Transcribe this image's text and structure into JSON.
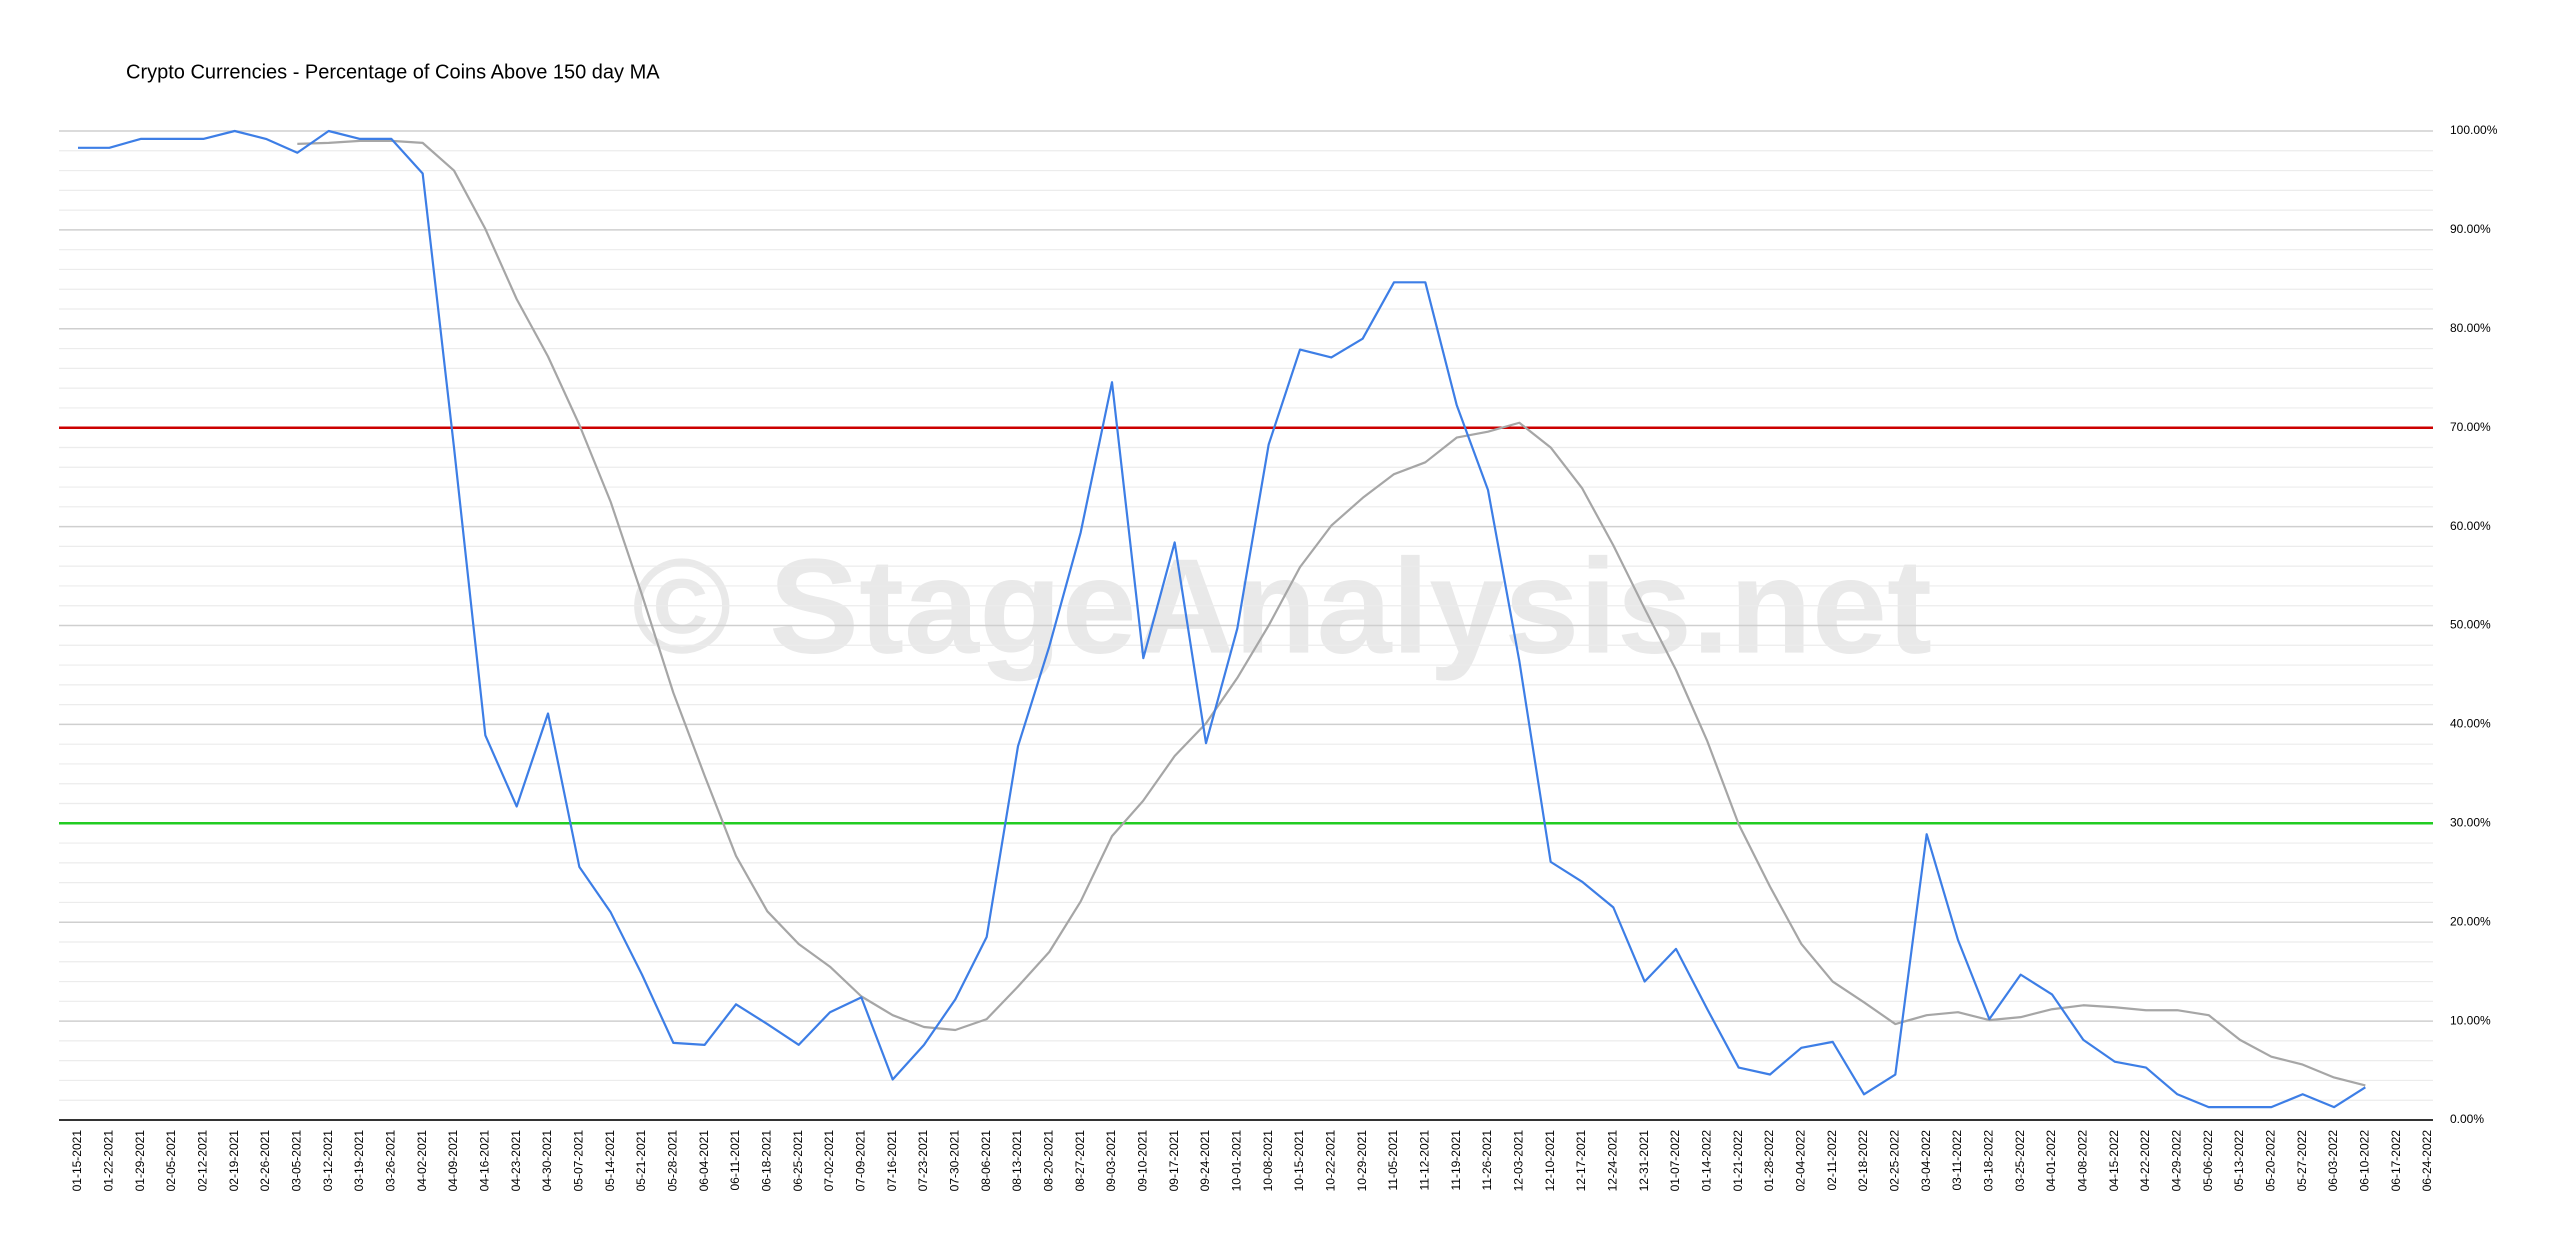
{
  "chart_data": {
    "type": "line",
    "title": "Crypto Currencies - Percentage of Coins Above 150 day MA",
    "watermark": "© StageAnalysis.net",
    "categories": [
      "01-15-2021",
      "01-22-2021",
      "01-29-2021",
      "02-05-2021",
      "02-12-2021",
      "02-19-2021",
      "02-26-2021",
      "03-05-2021",
      "03-12-2021",
      "03-19-2021",
      "03-26-2021",
      "04-02-2021",
      "04-09-2021",
      "04-16-2021",
      "04-23-2021",
      "04-30-2021",
      "05-07-2021",
      "05-14-2021",
      "05-21-2021",
      "05-28-2021",
      "06-04-2021",
      "06-11-2021",
      "06-18-2021",
      "06-25-2021",
      "07-02-2021",
      "07-09-2021",
      "07-16-2021",
      "07-23-2021",
      "07-30-2021",
      "08-06-2021",
      "08-13-2021",
      "08-20-2021",
      "08-27-2021",
      "09-03-2021",
      "09-10-2021",
      "09-17-2021",
      "09-24-2021",
      "10-01-2021",
      "10-08-2021",
      "10-15-2021",
      "10-22-2021",
      "10-29-2021",
      "11-05-2021",
      "11-12-2021",
      "11-19-2021",
      "11-26-2021",
      "12-03-2021",
      "12-10-2021",
      "12-17-2021",
      "12-24-2021",
      "12-31-2021",
      "01-07-2022",
      "01-14-2022",
      "01-21-2022",
      "01-28-2022",
      "02-04-2022",
      "02-11-2022",
      "02-18-2022",
      "02-25-2022",
      "03-04-2022",
      "03-11-2022",
      "03-18-2022",
      "03-25-2022",
      "04-01-2022",
      "04-08-2022",
      "04-15-2022",
      "04-22-2022",
      "04-29-2022",
      "05-06-2022",
      "05-13-2022",
      "05-20-2022",
      "05-27-2022",
      "06-03-2022",
      "06-10-2022",
      "06-17-2022",
      "06-24-2022"
    ],
    "series": [
      {
        "color": "#3d7ee6",
        "values": [
          98.3,
          98.3,
          99.2,
          99.2,
          99.2,
          100,
          99.2,
          97.8,
          100,
          99.2,
          99.2,
          95.7,
          68.0,
          38.9,
          31.7,
          41.1,
          25.6,
          21.0,
          14.7,
          7.8,
          7.6,
          11.7,
          9.7,
          7.6,
          10.9,
          12.4,
          4.1,
          7.6,
          12.2,
          18.5,
          37.8,
          47.9,
          59.4,
          74.6,
          46.7,
          58.4,
          38.1,
          49.7,
          68.3,
          77.9,
          77.1,
          79.0,
          84.7,
          84.7,
          72.3,
          63.7,
          46.4,
          26.1,
          24.1,
          21.5,
          14.0,
          17.3,
          11.2,
          5.3,
          4.6,
          7.3,
          7.9,
          2.6,
          4.6,
          28.9,
          18.2,
          10.2,
          14.7,
          12.7,
          8.1,
          5.9,
          5.3,
          2.6,
          1.3,
          1.3,
          1.3,
          2.6,
          1.3,
          3.3,
          null,
          null
        ]
      },
      {
        "color": "#a6a6a6",
        "values": [
          null,
          null,
          null,
          null,
          null,
          null,
          null,
          98.7,
          98.8,
          99.0,
          99.0,
          98.8,
          96.0,
          90.1,
          83.0,
          77.2,
          70.3,
          62.5,
          53.1,
          43.2,
          34.8,
          26.7,
          21.1,
          17.8,
          15.5,
          12.5,
          10.6,
          9.4,
          9.1,
          10.2,
          13.5,
          17.0,
          22.1,
          28.7,
          32.3,
          36.8,
          40.1,
          44.7,
          50.0,
          55.9,
          60.1,
          62.9,
          65.3,
          66.5,
          69.0,
          69.6,
          70.5,
          68.0,
          63.9,
          58.1,
          51.7,
          45.5,
          38.3,
          29.9,
          23.6,
          17.8,
          14.0,
          11.9,
          9.7,
          10.6,
          10.9,
          10.1,
          10.4,
          11.2,
          11.6,
          11.4,
          11.1,
          11.1,
          10.6,
          8.1,
          6.4,
          5.6,
          4.3,
          3.5,
          null,
          null
        ]
      }
    ],
    "reference_lines": [
      {
        "value": 70,
        "color": "#cc0000"
      },
      {
        "value": 30,
        "color": "#22cc22"
      }
    ],
    "ylim": [
      0,
      100
    ],
    "yticks": [
      {
        "value": 0,
        "label": "0.00%"
      },
      {
        "value": 10,
        "label": "10.00%"
      },
      {
        "value": 20,
        "label": "20.00%"
      },
      {
        "value": 30,
        "label": "30.00%"
      },
      {
        "value": 40,
        "label": "40.00%"
      },
      {
        "value": 50,
        "label": "50.00%"
      },
      {
        "value": 60,
        "label": "60.00%"
      },
      {
        "value": 70,
        "label": "70.00%"
      },
      {
        "value": 80,
        "label": "80.00%"
      },
      {
        "value": 90,
        "label": "90.00%"
      },
      {
        "value": 100,
        "label": "100.00%"
      }
    ],
    "yminor_ticks": [
      2,
      4,
      6,
      8,
      12,
      14,
      16,
      18,
      22,
      24,
      26,
      28,
      32,
      34,
      36,
      38,
      42,
      44,
      46,
      48,
      52,
      54,
      56,
      58,
      62,
      64,
      66,
      68,
      72,
      74,
      76,
      78,
      82,
      84,
      86,
      88,
      92,
      94,
      96,
      98
    ],
    "grid": true
  }
}
